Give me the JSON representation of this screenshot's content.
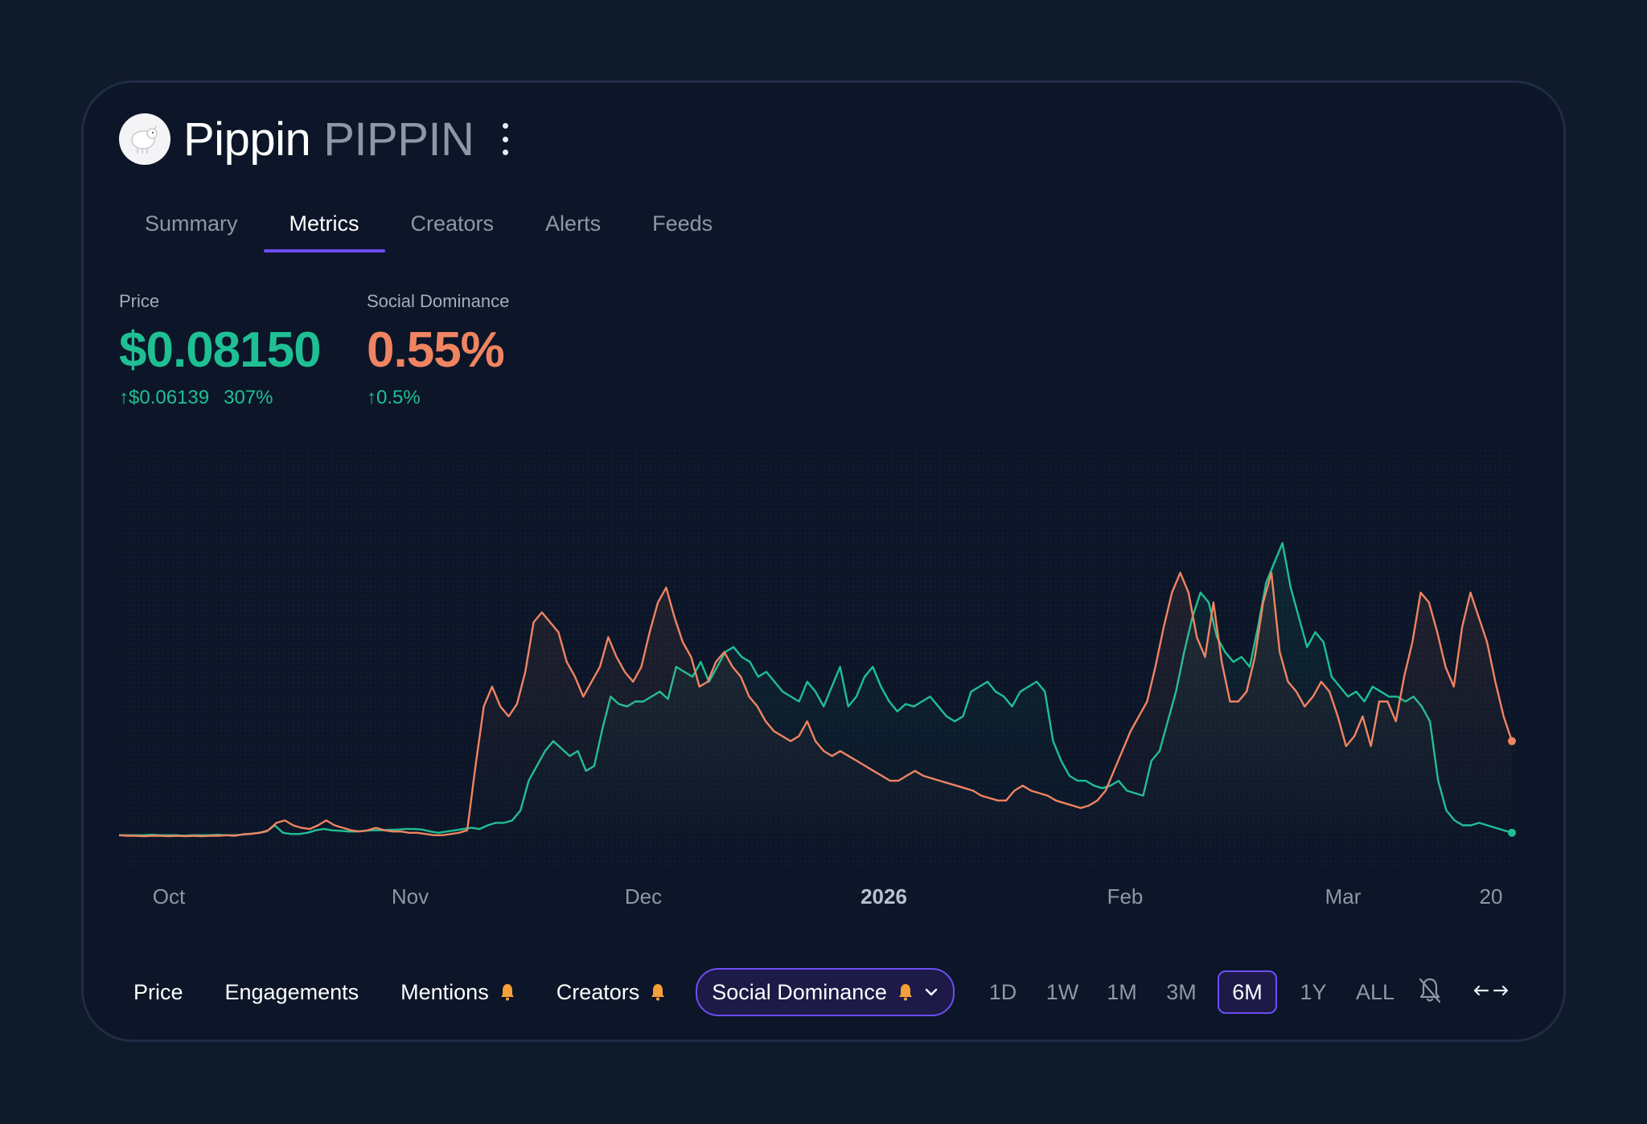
{
  "header": {
    "name": "Pippin",
    "ticker": "PIPPIN",
    "logo_icon": "pippin-unicorn-logo"
  },
  "tabs": [
    {
      "label": "Summary",
      "active": false
    },
    {
      "label": "Metrics",
      "active": true
    },
    {
      "label": "Creators",
      "active": false
    },
    {
      "label": "Alerts",
      "active": false
    },
    {
      "label": "Feeds",
      "active": false
    }
  ],
  "metrics": {
    "price": {
      "label": "Price",
      "value": "$0.08150",
      "change_abs": "↑$0.06139",
      "change_pct": "307%",
      "color": "#1fbf94"
    },
    "social": {
      "label": "Social Dominance",
      "value": "0.55%",
      "change": "↑0.5%",
      "color": "#f08461"
    }
  },
  "bottom_bar": {
    "metric_buttons": [
      {
        "label": "Price",
        "bell": false
      },
      {
        "label": "Engagements",
        "bell": false
      },
      {
        "label": "Mentions",
        "bell": true
      },
      {
        "label": "Creators",
        "bell": true
      }
    ],
    "selected_metric": "Social Dominance",
    "ranges": [
      "1D",
      "1W",
      "1M",
      "3M",
      "6M",
      "1Y",
      "ALL"
    ],
    "active_range": "6M",
    "icons": [
      "bell-off-icon",
      "expand-arrows-icon"
    ]
  },
  "chart_data": {
    "type": "line",
    "x_ticks": [
      "Oct",
      "Nov",
      "Dec",
      "2026",
      "Feb",
      "Mar",
      "20"
    ],
    "series": [
      {
        "name": "Price",
        "color": "#1fbf94",
        "values": [
          2,
          2,
          2,
          2,
          2.2,
          2,
          2,
          2,
          1.8,
          2,
          2,
          2,
          2.2,
          2,
          2,
          2.2,
          2.5,
          3,
          3.5,
          6,
          3,
          2.5,
          2.5,
          3,
          4,
          4.5,
          4,
          3.8,
          3.5,
          3.5,
          3.8,
          4,
          4,
          4.2,
          4.3,
          4.5,
          4.5,
          4.3,
          3.5,
          3,
          3.5,
          4,
          4.5,
          5,
          4.5,
          6,
          7,
          7,
          8,
          12,
          24,
          30,
          36,
          40,
          37,
          34,
          36,
          28,
          30,
          45,
          58,
          55,
          54,
          56,
          56,
          58,
          60,
          57,
          70,
          68,
          66,
          72,
          64,
          70,
          76,
          78,
          74,
          72,
          66,
          68,
          64,
          60,
          58,
          56,
          64,
          60,
          54,
          62,
          70,
          54,
          58,
          66,
          70,
          62,
          56,
          52,
          55,
          54,
          56,
          58,
          54,
          50,
          48,
          50,
          60,
          62,
          64,
          60,
          58,
          54,
          60,
          62,
          64,
          60,
          40,
          32,
          26,
          24,
          24,
          22,
          21,
          22,
          24,
          20,
          19,
          18,
          32,
          36,
          48,
          60,
          76,
          90,
          100,
          96,
          82,
          76,
          72,
          74,
          70,
          86,
          104,
          112,
          120,
          102,
          90,
          78,
          84,
          80,
          66,
          62,
          58,
          60,
          56,
          62,
          60,
          58,
          58,
          56,
          58,
          54,
          48,
          24,
          12,
          8,
          6,
          6,
          7,
          6,
          5,
          4,
          3
        ]
      },
      {
        "name": "Social Dominance",
        "color": "#f08461",
        "values": [
          2,
          1.8,
          1.8,
          1.6,
          1.8,
          1.8,
          1.6,
          1.8,
          1.6,
          1.8,
          1.6,
          1.8,
          1.8,
          2,
          1.8,
          2.4,
          2.6,
          3,
          4,
          7,
          8,
          6,
          5,
          4.5,
          6,
          8,
          6,
          5,
          4,
          3.5,
          4,
          5,
          4,
          3.5,
          3.5,
          3,
          3,
          2.5,
          2,
          2,
          2.5,
          3,
          4,
          30,
          54,
          62,
          54,
          50,
          55,
          68,
          88,
          92,
          88,
          84,
          72,
          66,
          58,
          64,
          70,
          82,
          74,
          68,
          64,
          70,
          84,
          96,
          102,
          90,
          80,
          74,
          62,
          64,
          72,
          76,
          70,
          66,
          58,
          54,
          48,
          44,
          42,
          40,
          42,
          48,
          40,
          36,
          34,
          36,
          34,
          32,
          30,
          28,
          26,
          24,
          24,
          26,
          28,
          26,
          25,
          24,
          23,
          22,
          21,
          20,
          18,
          17,
          16,
          16,
          20,
          22,
          20,
          19,
          18,
          16,
          15,
          14,
          13,
          14,
          16,
          20,
          28,
          36,
          44,
          50,
          56,
          70,
          86,
          100,
          108,
          100,
          82,
          74,
          96,
          72,
          56,
          56,
          60,
          74,
          96,
          108,
          76,
          64,
          60,
          54,
          58,
          64,
          60,
          50,
          38,
          42,
          50,
          38,
          56,
          56,
          48,
          66,
          80,
          100,
          96,
          84,
          70,
          62,
          86,
          100,
          90,
          80,
          64,
          50,
          40
        ]
      }
    ],
    "ylim": [
      0,
      125
    ],
    "grid": false,
    "legend": "none"
  }
}
